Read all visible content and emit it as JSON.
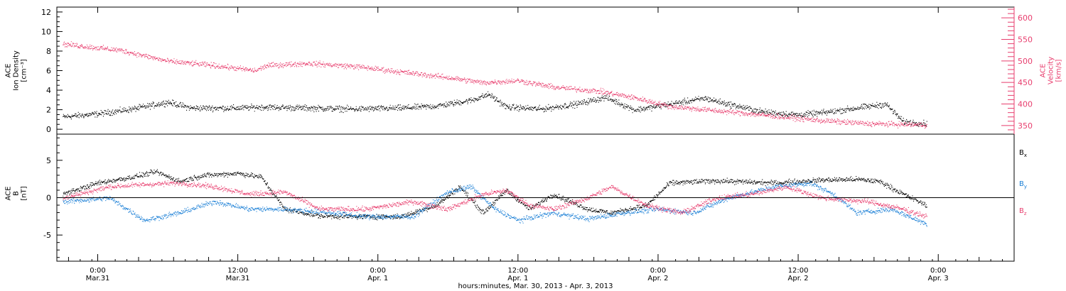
{
  "chart_data": {
    "type": "scatter",
    "x_axis": {
      "title": "hours:minutes, Mar. 30, 2013 - Apr.  3, 2013",
      "range": [
        "2013-03-30T20:30",
        "2013-04-03T06:30"
      ],
      "ticks": [
        {
          "time": "2013-03-31T00:00",
          "hm": "0:00",
          "date": "Mar.31"
        },
        {
          "time": "2013-03-31T12:00",
          "hm": "12:00",
          "date": "Mar.31"
        },
        {
          "time": "2013-04-01T00:00",
          "hm": "0:00",
          "date": "Apr. 1"
        },
        {
          "time": "2013-04-01T12:00",
          "hm": "12:00",
          "date": "Apr. 1"
        },
        {
          "time": "2013-04-02T00:00",
          "hm": "0:00",
          "date": "Apr. 2"
        },
        {
          "time": "2013-04-02T12:00",
          "hm": "12:00",
          "date": "Apr. 2"
        },
        {
          "time": "2013-04-03T00:00",
          "hm": "0:00",
          "date": "Apr. 3"
        }
      ]
    },
    "panels": [
      {
        "name": "plasma",
        "left_axis": {
          "label": [
            "ACE",
            "Ion Density",
            "[cm⁻³]"
          ],
          "range": [
            -0.5,
            12.5
          ],
          "ticks": [
            0,
            2,
            4,
            6,
            8,
            10,
            12
          ],
          "color": "#000000"
        },
        "right_axis": {
          "label": [
            "ACE",
            "Velocity",
            "[km/s]"
          ],
          "range": [
            330,
            625
          ],
          "ticks": [
            350,
            400,
            450,
            500,
            550,
            600
          ],
          "color": "#e83e6e"
        },
        "series": [
          {
            "name": "density",
            "axis": "left",
            "color": "#000000",
            "points": [
              [
                "2013-03-30T21:00",
                1.3
              ],
              [
                "2013-03-31T00:00",
                1.6
              ],
              [
                "2013-03-31T03:00",
                2.1
              ],
              [
                "2013-03-31T06:00",
                2.8
              ],
              [
                "2013-03-31T08:00",
                2.2
              ],
              [
                "2013-03-31T12:00",
                2.2
              ],
              [
                "2013-03-31T14:00",
                2.3
              ],
              [
                "2013-03-31T18:00",
                2.2
              ],
              [
                "2013-03-31T22:00",
                2.1
              ],
              [
                "2013-04-01T02:00",
                2.2
              ],
              [
                "2013-04-01T05:00",
                2.4
              ],
              [
                "2013-04-01T08:00",
                3.0
              ],
              [
                "2013-04-01T09:30",
                3.6
              ],
              [
                "2013-04-01T11:00",
                2.3
              ],
              [
                "2013-04-01T14:00",
                2.1
              ],
              [
                "2013-04-01T17:00",
                2.6
              ],
              [
                "2013-04-01T19:30",
                3.3
              ],
              [
                "2013-04-01T22:00",
                2.0
              ],
              [
                "2013-04-02T01:00",
                2.6
              ],
              [
                "2013-04-02T04:00",
                3.2
              ],
              [
                "2013-04-02T06:00",
                2.6
              ],
              [
                "2013-04-02T09:00",
                1.8
              ],
              [
                "2013-04-02T12:00",
                1.5
              ],
              [
                "2013-04-02T14:00",
                1.7
              ],
              [
                "2013-04-02T17:00",
                2.2
              ],
              [
                "2013-04-02T19:30",
                2.6
              ],
              [
                "2013-04-02T21:00",
                0.8
              ],
              [
                "2013-04-02T23:00",
                0.6
              ]
            ]
          },
          {
            "name": "velocity",
            "axis": "right",
            "color": "#e83e6e",
            "points": [
              [
                "2013-03-30T21:00",
                540
              ],
              [
                "2013-03-31T02:00",
                525
              ],
              [
                "2013-03-31T06:00",
                500
              ],
              [
                "2013-03-31T10:00",
                490
              ],
              [
                "2013-03-31T13:30",
                478
              ],
              [
                "2013-03-31T14:30",
                490
              ],
              [
                "2013-03-31T18:00",
                495
              ],
              [
                "2013-03-31T22:00",
                488
              ],
              [
                "2013-04-01T02:00",
                475
              ],
              [
                "2013-04-01T06:00",
                462
              ],
              [
                "2013-04-01T09:00",
                450
              ],
              [
                "2013-04-01T12:00",
                455
              ],
              [
                "2013-04-01T15:00",
                440
              ],
              [
                "2013-04-01T19:00",
                430
              ],
              [
                "2013-04-01T22:00",
                415
              ],
              [
                "2013-04-02T01:00",
                395
              ],
              [
                "2013-04-02T05:00",
                385
              ],
              [
                "2013-04-02T09:00",
                375
              ],
              [
                "2013-04-02T14:00",
                362
              ],
              [
                "2013-04-02T18:00",
                355
              ],
              [
                "2013-04-02T23:00",
                352
              ]
            ]
          }
        ]
      },
      {
        "name": "magnetic field",
        "left_axis": {
          "label": [
            "ACE",
            "B",
            "[nT]"
          ],
          "range": [
            -8.5,
            8.5
          ],
          "ticks": [
            -5,
            0,
            5
          ],
          "color": "#000000"
        },
        "zero_line": true,
        "series": [
          {
            "name": "Bx",
            "label": "B",
            "sub": "x",
            "color": "#000000",
            "points": [
              [
                "2013-03-30T21:00",
                0.5
              ],
              [
                "2013-03-31T00:00",
                2.0
              ],
              [
                "2013-03-31T03:00",
                2.8
              ],
              [
                "2013-03-31T05:00",
                3.5
              ],
              [
                "2013-03-31T07:00",
                2.2
              ],
              [
                "2013-03-31T09:00",
                3.0
              ],
              [
                "2013-03-31T12:00",
                3.3
              ],
              [
                "2013-03-31T14:00",
                2.8
              ],
              [
                "2013-03-31T16:00",
                -1.5
              ],
              [
                "2013-03-31T19:00",
                -2.4
              ],
              [
                "2013-03-31T22:00",
                -2.5
              ],
              [
                "2013-04-01T02:00",
                -2.5
              ],
              [
                "2013-04-01T05:00",
                -1.0
              ],
              [
                "2013-04-01T07:00",
                1.5
              ],
              [
                "2013-04-01T09:00",
                -2.0
              ],
              [
                "2013-04-01T11:00",
                1.0
              ],
              [
                "2013-04-01T13:00",
                -1.5
              ],
              [
                "2013-04-01T15:00",
                0.5
              ],
              [
                "2013-04-01T18:00",
                -1.5
              ],
              [
                "2013-04-01T20:00",
                -2.0
              ],
              [
                "2013-04-01T23:00",
                -1.0
              ],
              [
                "2013-04-02T01:00",
                2.0
              ],
              [
                "2013-04-02T05:00",
                2.3
              ],
              [
                "2013-04-02T10:00",
                2.0
              ],
              [
                "2013-04-02T14:00",
                2.4
              ],
              [
                "2013-04-02T17:00",
                2.5
              ],
              [
                "2013-04-02T19:00",
                2.2
              ],
              [
                "2013-04-02T21:00",
                0.5
              ],
              [
                "2013-04-02T23:00",
                -1.0
              ]
            ]
          },
          {
            "name": "By",
            "label": "B",
            "sub": "y",
            "color": "#1a7fd6",
            "points": [
              [
                "2013-03-30T21:00",
                -0.5
              ],
              [
                "2013-03-31T01:00",
                0.0
              ],
              [
                "2013-03-31T04:00",
                -3.0
              ],
              [
                "2013-03-31T07:00",
                -2.0
              ],
              [
                "2013-03-31T10:00",
                -0.5
              ],
              [
                "2013-03-31T13:00",
                -1.5
              ],
              [
                "2013-03-31T16:00",
                -1.5
              ],
              [
                "2013-03-31T20:00",
                -2.0
              ],
              [
                "2013-03-31T23:00",
                -2.5
              ],
              [
                "2013-04-01T03:00",
                -2.5
              ],
              [
                "2013-04-01T06:00",
                0.8
              ],
              [
                "2013-04-01T08:00",
                1.5
              ],
              [
                "2013-04-01T10:00",
                -1.5
              ],
              [
                "2013-04-01T12:00",
                -3.0
              ],
              [
                "2013-04-01T15:00",
                -2.0
              ],
              [
                "2013-04-01T18:00",
                -2.8
              ],
              [
                "2013-04-01T21:00",
                -2.0
              ],
              [
                "2013-04-02T00:00",
                -1.5
              ],
              [
                "2013-04-02T03:00",
                -2.0
              ],
              [
                "2013-04-02T06:00",
                0.0
              ],
              [
                "2013-04-02T10:00",
                1.5
              ],
              [
                "2013-04-02T13:00",
                2.0
              ],
              [
                "2013-04-02T15:00",
                0.5
              ],
              [
                "2013-04-02T17:00",
                -2.0
              ],
              [
                "2013-04-02T20:00",
                -1.5
              ],
              [
                "2013-04-02T23:00",
                -3.5
              ]
            ]
          },
          {
            "name": "Bz",
            "label": "B",
            "sub": "z",
            "color": "#e83e6e",
            "points": [
              [
                "2013-03-30T21:00",
                0.0
              ],
              [
                "2013-03-31T01:00",
                1.5
              ],
              [
                "2013-03-31T04:00",
                1.8
              ],
              [
                "2013-03-31T07:00",
                2.0
              ],
              [
                "2013-03-31T10:00",
                1.5
              ],
              [
                "2013-03-31T13:00",
                0.5
              ],
              [
                "2013-03-31T16:00",
                0.8
              ],
              [
                "2013-03-31T19:00",
                -1.5
              ],
              [
                "2013-03-31T23:00",
                -1.5
              ],
              [
                "2013-04-01T03:00",
                -0.5
              ],
              [
                "2013-04-01T06:00",
                -1.5
              ],
              [
                "2013-04-01T09:00",
                0.5
              ],
              [
                "2013-04-01T11:00",
                1.0
              ],
              [
                "2013-04-01T13:00",
                -1.0
              ],
              [
                "2013-04-01T15:00",
                -1.5
              ],
              [
                "2013-04-01T18:00",
                0.0
              ],
              [
                "2013-04-01T20:00",
                1.5
              ],
              [
                "2013-04-01T23:00",
                -1.0
              ],
              [
                "2013-04-02T02:00",
                -2.0
              ],
              [
                "2013-04-02T05:00",
                0.0
              ],
              [
                "2013-04-02T08:00",
                0.5
              ],
              [
                "2013-04-02T11:00",
                1.5
              ],
              [
                "2013-04-02T14:00",
                0.0
              ],
              [
                "2013-04-02T18:00",
                -0.5
              ],
              [
                "2013-04-02T21:00",
                -1.5
              ],
              [
                "2013-04-02T23:00",
                -2.5
              ]
            ]
          }
        ]
      }
    ]
  }
}
